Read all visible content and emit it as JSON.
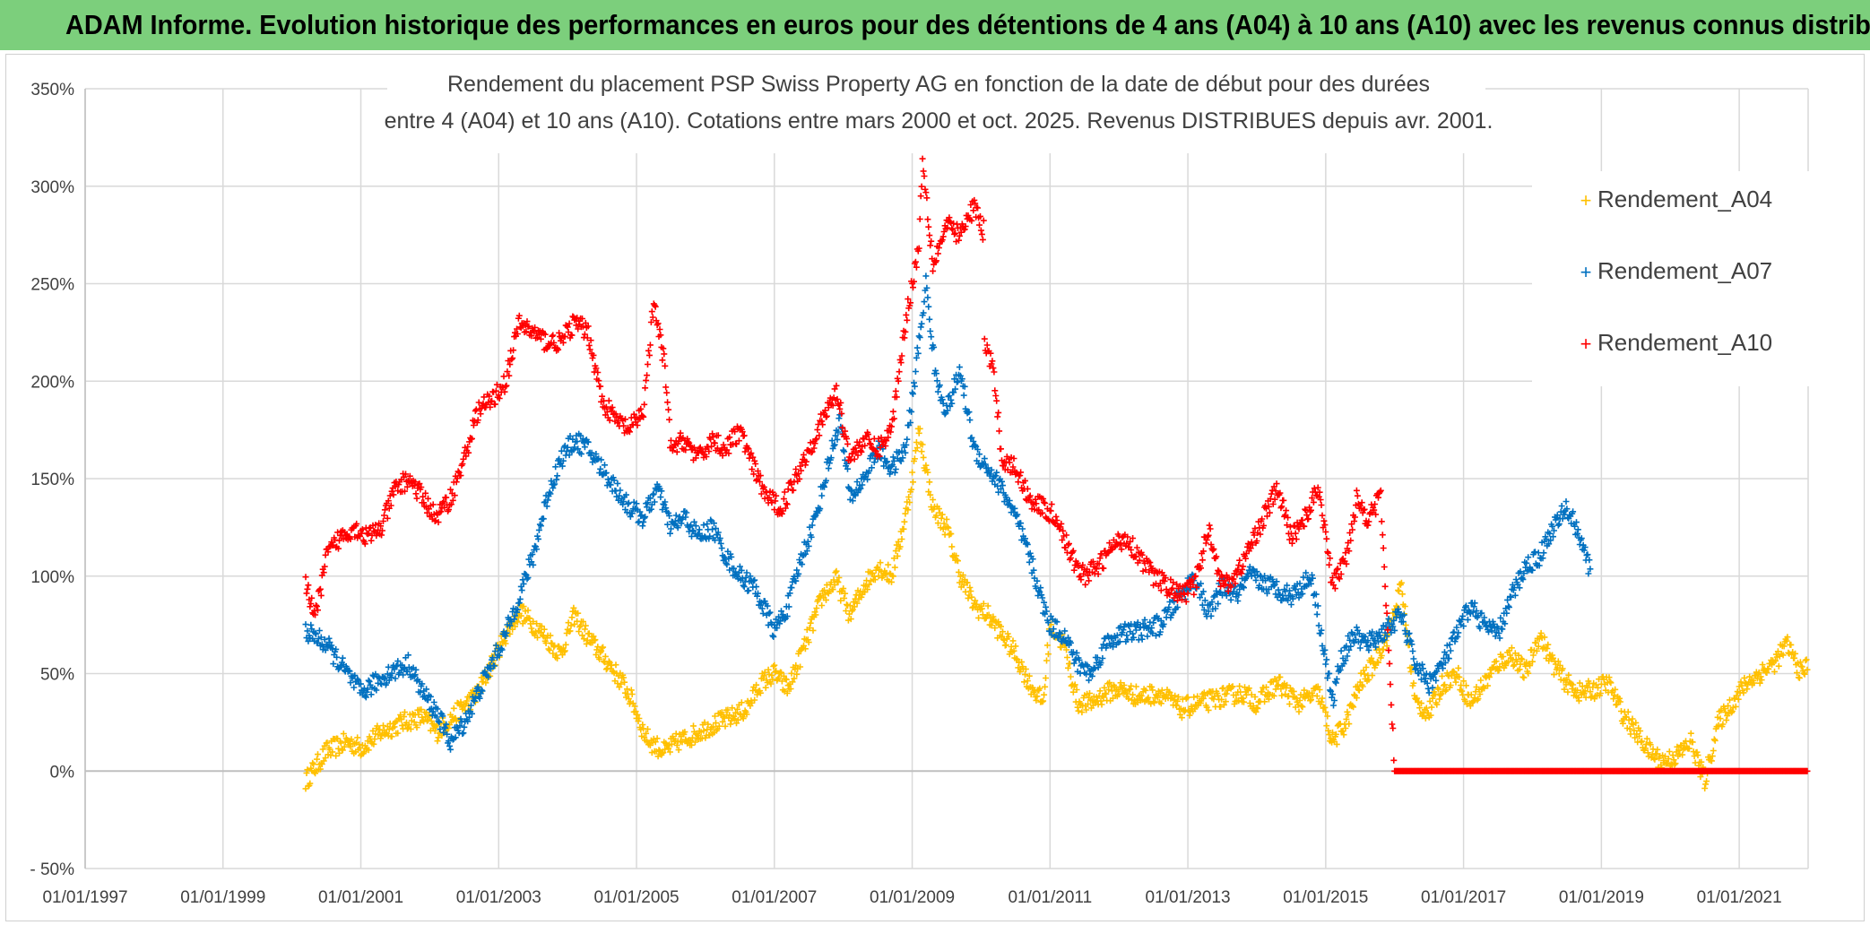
{
  "header": {
    "banner": "ADAM Informe. Evolution historique des performances en euros pour des détentions de 4 ans (A04) à 10 ans (A10) avec les revenus connus distribués"
  },
  "chart_data": {
    "type": "scatter",
    "title_line1": "Rendement du placement PSP Swiss Property AG en fonction de la date de début pour des durées",
    "title_line2": "entre 4 (A04) et 10 ans (A10). Cotations entre mars 2000 et oct. 2025. Revenus DISTRIBUES depuis avr. 2001.",
    "xlabel": "",
    "ylabel": "",
    "x_range_years": [
      1997.0,
      2022.0
    ],
    "ylim": [
      -50,
      350
    ],
    "y_ticks": [
      -50,
      0,
      50,
      100,
      150,
      200,
      250,
      300,
      350
    ],
    "y_tick_labels": [
      "- 50%",
      "0%",
      "50%",
      "100%",
      "150%",
      "200%",
      "250%",
      "300%",
      "350%"
    ],
    "x_ticks": [
      1997,
      1999,
      2001,
      2003,
      2005,
      2007,
      2009,
      2011,
      2013,
      2015,
      2017,
      2019,
      2021
    ],
    "x_tick_labels": [
      "01/01/1997",
      "01/01/1999",
      "01/01/2001",
      "01/01/2003",
      "01/01/2005",
      "01/01/2007",
      "01/01/2009",
      "01/01/2011",
      "01/01/2013",
      "01/01/2015",
      "01/01/2017",
      "01/01/2019",
      "01/01/2021"
    ],
    "legend_position": "top-right",
    "series": [
      {
        "name": "Rendement_A04",
        "color": "#ffc000",
        "marker": "+",
        "points": [
          [
            2000.2,
            -5
          ],
          [
            2000.5,
            10
          ],
          [
            2000.8,
            15
          ],
          [
            2001.0,
            12
          ],
          [
            2001.3,
            20
          ],
          [
            2001.6,
            25
          ],
          [
            2001.9,
            28
          ],
          [
            2002.1,
            20
          ],
          [
            2002.4,
            30
          ],
          [
            2002.7,
            40
          ],
          [
            2002.9,
            55
          ],
          [
            2003.1,
            70
          ],
          [
            2003.3,
            82
          ],
          [
            2003.6,
            72
          ],
          [
            2003.9,
            60
          ],
          [
            2004.1,
            80
          ],
          [
            2004.3,
            68
          ],
          [
            2004.6,
            55
          ],
          [
            2004.8,
            45
          ],
          [
            2004.95,
            35
          ],
          [
            2005.1,
            20
          ],
          [
            2005.2,
            15
          ],
          [
            2005.4,
            10
          ],
          [
            2005.6,
            15
          ],
          [
            2005.8,
            18
          ],
          [
            2006.0,
            22
          ],
          [
            2006.2,
            25
          ],
          [
            2006.4,
            28
          ],
          [
            2006.6,
            32
          ],
          [
            2006.8,
            45
          ],
          [
            2007.0,
            50
          ],
          [
            2007.2,
            42
          ],
          [
            2007.5,
            70
          ],
          [
            2007.7,
            90
          ],
          [
            2007.9,
            98
          ],
          [
            2008.1,
            80
          ],
          [
            2008.3,
            95
          ],
          [
            2008.5,
            105
          ],
          [
            2008.7,
            100
          ],
          [
            2008.9,
            130
          ],
          [
            2009.0,
            150
          ],
          [
            2009.1,
            175
          ],
          [
            2009.3,
            135
          ],
          [
            2009.5,
            125
          ],
          [
            2009.7,
            100
          ],
          [
            2009.9,
            85
          ],
          [
            2010.1,
            80
          ],
          [
            2010.3,
            70
          ],
          [
            2010.5,
            60
          ],
          [
            2010.7,
            45
          ],
          [
            2010.9,
            35
          ],
          [
            2011.0,
            75
          ],
          [
            2011.2,
            65
          ],
          [
            2011.4,
            35
          ],
          [
            2011.6,
            35
          ],
          [
            2011.8,
            40
          ],
          [
            2012.0,
            42
          ],
          [
            2012.3,
            38
          ],
          [
            2012.6,
            40
          ],
          [
            2012.9,
            32
          ],
          [
            2013.2,
            35
          ],
          [
            2013.5,
            38
          ],
          [
            2013.8,
            40
          ],
          [
            2014.0,
            35
          ],
          [
            2014.3,
            45
          ],
          [
            2014.6,
            35
          ],
          [
            2014.9,
            40
          ],
          [
            2015.1,
            15
          ],
          [
            2015.3,
            25
          ],
          [
            2015.5,
            45
          ],
          [
            2015.7,
            55
          ],
          [
            2015.9,
            70
          ],
          [
            2016.1,
            95
          ],
          [
            2016.3,
            35
          ],
          [
            2016.5,
            30
          ],
          [
            2016.7,
            45
          ],
          [
            2016.9,
            50
          ],
          [
            2017.1,
            35
          ],
          [
            2017.3,
            45
          ],
          [
            2017.5,
            55
          ],
          [
            2017.7,
            60
          ],
          [
            2017.9,
            50
          ],
          [
            2018.1,
            70
          ],
          [
            2018.3,
            55
          ],
          [
            2018.5,
            45
          ],
          [
            2018.7,
            40
          ],
          [
            2018.9,
            42
          ],
          [
            2019.1,
            45
          ],
          [
            2019.3,
            30
          ],
          [
            2019.5,
            20
          ],
          [
            2019.7,
            10
          ],
          [
            2019.9,
            5
          ],
          [
            2020.1,
            8
          ],
          [
            2020.3,
            15
          ],
          [
            2020.5,
            -5
          ],
          [
            2020.7,
            25
          ],
          [
            2020.9,
            35
          ],
          [
            2021.1,
            45
          ],
          [
            2021.3,
            50
          ],
          [
            2021.5,
            55
          ],
          [
            2021.7,
            65
          ],
          [
            2021.9,
            50
          ],
          [
            2022.0,
            55
          ]
        ]
      },
      {
        "name": "Rendement_A07",
        "color": "#0070c0",
        "marker": "+",
        "points": [
          [
            2000.2,
            72
          ],
          [
            2000.5,
            65
          ],
          [
            2000.8,
            50
          ],
          [
            2001.0,
            40
          ],
          [
            2001.2,
            45
          ],
          [
            2001.4,
            50
          ],
          [
            2001.7,
            55
          ],
          [
            2001.9,
            40
          ],
          [
            2002.1,
            30
          ],
          [
            2002.3,
            15
          ],
          [
            2002.5,
            25
          ],
          [
            2002.7,
            40
          ],
          [
            2002.9,
            55
          ],
          [
            2003.1,
            70
          ],
          [
            2003.3,
            90
          ],
          [
            2003.5,
            110
          ],
          [
            2003.7,
            140
          ],
          [
            2003.9,
            160
          ],
          [
            2004.1,
            170
          ],
          [
            2004.3,
            165
          ],
          [
            2004.5,
            155
          ],
          [
            2004.7,
            145
          ],
          [
            2004.9,
            135
          ],
          [
            2005.1,
            130
          ],
          [
            2005.3,
            145
          ],
          [
            2005.5,
            125
          ],
          [
            2005.7,
            130
          ],
          [
            2005.9,
            120
          ],
          [
            2006.1,
            125
          ],
          [
            2006.3,
            110
          ],
          [
            2006.5,
            100
          ],
          [
            2006.7,
            95
          ],
          [
            2006.9,
            80
          ],
          [
            2007.0,
            72
          ],
          [
            2007.2,
            85
          ],
          [
            2007.4,
            110
          ],
          [
            2007.6,
            130
          ],
          [
            2007.8,
            160
          ],
          [
            2007.95,
            180
          ],
          [
            2008.1,
            140
          ],
          [
            2008.3,
            150
          ],
          [
            2008.5,
            165
          ],
          [
            2008.7,
            155
          ],
          [
            2008.9,
            165
          ],
          [
            2009.0,
            190
          ],
          [
            2009.1,
            220
          ],
          [
            2009.2,
            250
          ],
          [
            2009.35,
            200
          ],
          [
            2009.5,
            185
          ],
          [
            2009.7,
            205
          ],
          [
            2009.9,
            165
          ],
          [
            2010.1,
            155
          ],
          [
            2010.3,
            145
          ],
          [
            2010.5,
            130
          ],
          [
            2010.7,
            110
          ],
          [
            2010.9,
            85
          ],
          [
            2011.0,
            75
          ],
          [
            2011.2,
            70
          ],
          [
            2011.4,
            55
          ],
          [
            2011.6,
            50
          ],
          [
            2011.8,
            65
          ],
          [
            2012.0,
            70
          ],
          [
            2012.3,
            72
          ],
          [
            2012.6,
            75
          ],
          [
            2012.9,
            90
          ],
          [
            2013.1,
            100
          ],
          [
            2013.3,
            80
          ],
          [
            2013.5,
            95
          ],
          [
            2013.7,
            90
          ],
          [
            2013.9,
            100
          ],
          [
            2014.2,
            95
          ],
          [
            2014.5,
            90
          ],
          [
            2014.8,
            100
          ],
          [
            2015.1,
            35
          ],
          [
            2015.2,
            55
          ],
          [
            2015.4,
            70
          ],
          [
            2015.6,
            65
          ],
          [
            2015.8,
            70
          ],
          [
            2016.1,
            80
          ],
          [
            2016.3,
            55
          ],
          [
            2016.5,
            45
          ],
          [
            2016.7,
            55
          ],
          [
            2016.9,
            70
          ],
          [
            2017.1,
            85
          ],
          [
            2017.3,
            75
          ],
          [
            2017.5,
            70
          ],
          [
            2017.7,
            90
          ],
          [
            2017.9,
            105
          ],
          [
            2018.1,
            110
          ],
          [
            2018.3,
            125
          ],
          [
            2018.5,
            135
          ],
          [
            2018.7,
            120
          ],
          [
            2018.85,
            100
          ]
        ]
      },
      {
        "name": "Rendement_A10",
        "color": "#ff0000",
        "marker": "+",
        "points": [
          [
            2000.2,
            95
          ],
          [
            2000.35,
            80
          ],
          [
            2000.5,
            110
          ],
          [
            2000.7,
            120
          ],
          [
            2000.9,
            125
          ],
          [
            2001.1,
            120
          ],
          [
            2001.3,
            125
          ],
          [
            2001.5,
            145
          ],
          [
            2001.7,
            150
          ],
          [
            2001.9,
            140
          ],
          [
            2002.1,
            130
          ],
          [
            2002.3,
            140
          ],
          [
            2002.5,
            160
          ],
          [
            2002.7,
            185
          ],
          [
            2002.9,
            190
          ],
          [
            2003.1,
            200
          ],
          [
            2003.3,
            230
          ],
          [
            2003.5,
            225
          ],
          [
            2003.7,
            220
          ],
          [
            2003.9,
            220
          ],
          [
            2004.1,
            230
          ],
          [
            2004.3,
            225
          ],
          [
            2004.5,
            190
          ],
          [
            2004.7,
            180
          ],
          [
            2004.9,
            175
          ],
          [
            2005.1,
            185
          ],
          [
            2005.25,
            240
          ],
          [
            2005.4,
            210
          ],
          [
            2005.5,
            165
          ],
          [
            2005.7,
            170
          ],
          [
            2005.9,
            160
          ],
          [
            2006.1,
            170
          ],
          [
            2006.3,
            165
          ],
          [
            2006.5,
            175
          ],
          [
            2006.7,
            155
          ],
          [
            2006.9,
            140
          ],
          [
            2007.1,
            135
          ],
          [
            2007.3,
            150
          ],
          [
            2007.5,
            165
          ],
          [
            2007.7,
            180
          ],
          [
            2007.9,
            195
          ],
          [
            2008.1,
            160
          ],
          [
            2008.3,
            170
          ],
          [
            2008.5,
            165
          ],
          [
            2008.7,
            175
          ],
          [
            2008.9,
            230
          ],
          [
            2009.0,
            250
          ],
          [
            2009.1,
            270
          ],
          [
            2009.15,
            315
          ],
          [
            2009.3,
            260
          ],
          [
            2009.5,
            280
          ],
          [
            2009.7,
            275
          ],
          [
            2009.9,
            290
          ],
          [
            2010.0,
            280
          ],
          [
            2010.1,
            215
          ],
          [
            2010.2,
            200
          ],
          [
            2010.3,
            160
          ],
          [
            2010.5,
            155
          ],
          [
            2010.7,
            140
          ],
          [
            2010.9,
            135
          ],
          [
            2011.1,
            130
          ],
          [
            2011.3,
            110
          ],
          [
            2011.5,
            100
          ],
          [
            2011.7,
            105
          ],
          [
            2011.9,
            115
          ],
          [
            2012.1,
            120
          ],
          [
            2012.3,
            110
          ],
          [
            2012.5,
            100
          ],
          [
            2012.7,
            95
          ],
          [
            2012.9,
            90
          ],
          [
            2013.1,
            95
          ],
          [
            2013.3,
            125
          ],
          [
            2013.5,
            95
          ],
          [
            2013.7,
            100
          ],
          [
            2013.9,
            115
          ],
          [
            2014.1,
            130
          ],
          [
            2014.3,
            145
          ],
          [
            2014.5,
            120
          ],
          [
            2014.7,
            130
          ],
          [
            2014.9,
            145
          ],
          [
            2015.1,
            95
          ],
          [
            2015.3,
            110
          ],
          [
            2015.45,
            140
          ],
          [
            2015.6,
            130
          ],
          [
            2015.8,
            140
          ],
          [
            2016.0,
            0
          ],
          [
            2016.5,
            0
          ],
          [
            2017.0,
            0
          ],
          [
            2017.5,
            0
          ],
          [
            2018.0,
            0
          ],
          [
            2018.5,
            0
          ],
          [
            2019.0,
            0
          ],
          [
            2019.5,
            0
          ],
          [
            2020.0,
            0
          ],
          [
            2020.5,
            0
          ],
          [
            2021.0,
            0
          ],
          [
            2021.5,
            0
          ],
          [
            2022.0,
            0
          ]
        ]
      }
    ]
  }
}
